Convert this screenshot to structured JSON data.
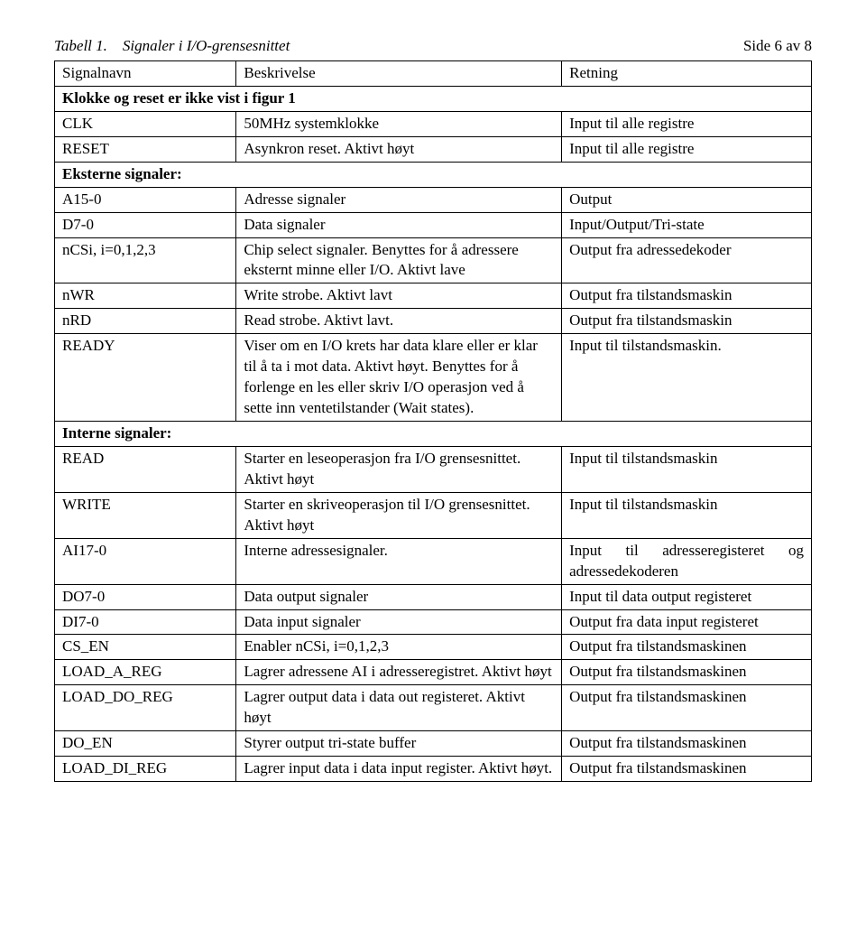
{
  "page_number": "Side 6 av 8",
  "caption_label": "Tabell 1.",
  "caption_text": "Signaler i I/O-grensesnittet",
  "headers": {
    "signal": "Signalnavn",
    "desc": "Beskrivelse",
    "dir": "Retning"
  },
  "section1": "Klokke og reset er ikke vist i figur 1",
  "section2": "Eksterne signaler:",
  "section3": "Interne signaler:",
  "rows": {
    "clk": {
      "sig": "CLK",
      "desc": "50MHz systemklokke",
      "dir": "Input til alle registre"
    },
    "reset": {
      "sig": "RESET",
      "desc": "Asynkron reset. Aktivt høyt",
      "dir": "Input til alle registre"
    },
    "a15": {
      "sig": "A15-0",
      "desc": "Adresse signaler",
      "dir": "Output"
    },
    "d7": {
      "sig": "D7-0",
      "desc": "Data signaler",
      "dir": "Input/Output/Tri-state"
    },
    "ncsi": {
      "sig": "nCSi, i=0,1,2,3",
      "desc": "Chip select signaler. Benyttes for å adressere eksternt minne eller I/O. Aktivt lave",
      "dir": "Output fra adressedekoder"
    },
    "nwr": {
      "sig": "nWR",
      "desc": "Write strobe. Aktivt lavt",
      "dir": "Output fra tilstandsmaskin"
    },
    "nrd": {
      "sig": "nRD",
      "desc": "Read strobe. Aktivt lavt.",
      "dir": "Output fra tilstandsmaskin"
    },
    "ready": {
      "sig": "READY",
      "desc": "Viser om en I/O krets har data klare eller er klar til å ta i mot data. Aktivt høyt. Benyttes for å forlenge en les eller skriv I/O operasjon ved å sette inn ventetilstander (Wait states).",
      "dir": "Input til tilstandsmaskin."
    },
    "read": {
      "sig": "READ",
      "desc": "Starter en leseoperasjon fra I/O grensesnittet. Aktivt høyt",
      "dir": "Input til tilstandsmaskin"
    },
    "write": {
      "sig": "WRITE",
      "desc": "Starter en skriveoperasjon til I/O grensesnittet. Aktivt høyt",
      "dir": "Input til tilstandsmaskin"
    },
    "ai17": {
      "sig": "AI17-0",
      "desc": "Interne adressesignaler.",
      "dir": "Input til adresseregisteret og adressedekoderen"
    },
    "do7": {
      "sig": "DO7-0",
      "desc": "Data output signaler",
      "dir": "Input til data output registeret"
    },
    "di7": {
      "sig": "DI7-0",
      "desc": "Data input signaler",
      "dir": "Output fra data input registeret"
    },
    "csen": {
      "sig": "CS_EN",
      "desc": "Enabler nCSi, i=0,1,2,3",
      "dir": "Output fra tilstandsmaskinen"
    },
    "loadareg": {
      "sig": "LOAD_A_REG",
      "desc": "Lagrer adressene AI i adresseregistret. Aktivt høyt",
      "dir": "Output fra tilstandsmaskinen"
    },
    "loaddoreg": {
      "sig": "LOAD_DO_REG",
      "desc": "Lagrer output data i data out registeret. Aktivt høyt",
      "dir": "Output fra tilstandsmaskinen"
    },
    "doen": {
      "sig": "DO_EN",
      "desc": "Styrer output tri-state buffer",
      "dir": "Output fra tilstandsmaskinen"
    },
    "loaddireg": {
      "sig": "LOAD_DI_REG",
      "desc": "Lagrer input data i data input register. Aktivt høyt.",
      "dir": "Output fra tilstandsmaskinen"
    }
  }
}
